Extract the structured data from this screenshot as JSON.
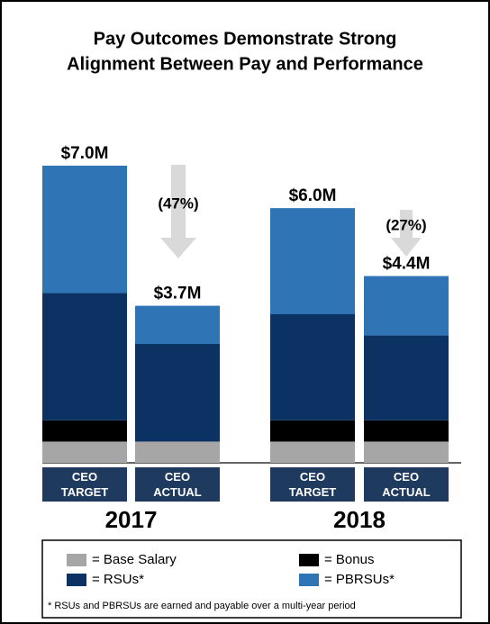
{
  "chart_data": {
    "type": "stacked_bar",
    "title": [
      "Pay Outcomes Demonstrate Strong",
      "Alignment Between Pay and Performance"
    ],
    "categories": [
      "CEO TARGET",
      "CEO ACTUAL",
      "CEO TARGET",
      "CEO ACTUAL"
    ],
    "groups": [
      "2017",
      "2018"
    ],
    "ylim": [
      0,
      7.0
    ],
    "series": [
      {
        "name": "= Base Salary",
        "color": "#a6a6a6",
        "values": [
          0.5,
          0.5,
          0.5,
          0.5
        ]
      },
      {
        "name": "= Bonus",
        "color": "#000000",
        "values": [
          0.5,
          0,
          0.5,
          0.5
        ]
      },
      {
        "name": "= RSUs*",
        "color": "#0b3263",
        "values": [
          3.0,
          2.3,
          2.5,
          2.0
        ]
      },
      {
        "name": "= PBRSUs*",
        "color": "#2f75b5",
        "values": [
          3.0,
          0.9,
          2.5,
          1.4
        ]
      }
    ],
    "totals": {
      "values": [
        7.0,
        3.7,
        6.0,
        4.4
      ],
      "value_labels": [
        "$7.0M",
        "$3.7M",
        "$6.0M",
        "$4.4M"
      ]
    },
    "annotations": [
      "(47%)",
      "(27%)"
    ],
    "footnote": "* RSUs and PBRSUs are earned and payable over a multi-year period"
  }
}
